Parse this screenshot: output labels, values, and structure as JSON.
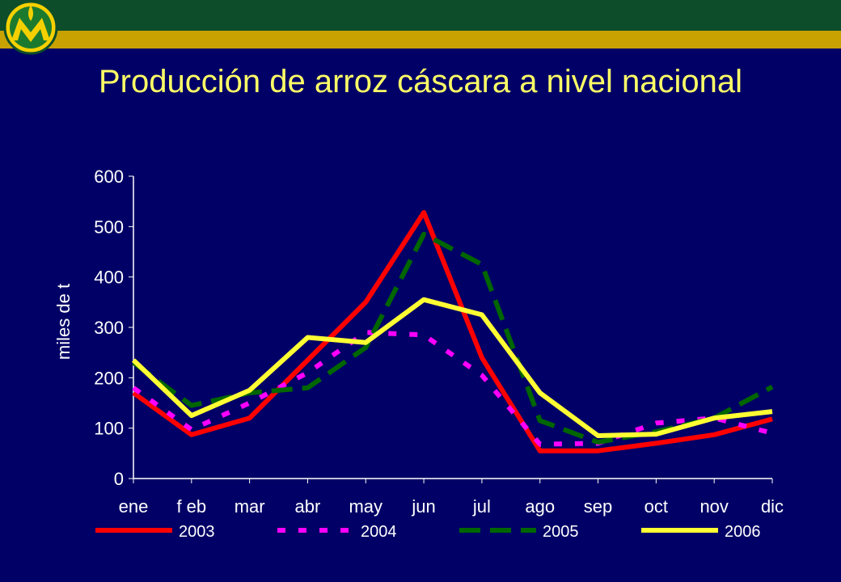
{
  "title": "Producción de arroz cáscara a nivel nacional",
  "chart_data": {
    "type": "line",
    "title": "Producción de arroz cáscara a nivel nacional",
    "ylabel": "miles de t",
    "xlabel": "",
    "ylim": [
      0,
      600
    ],
    "yticks": [
      0,
      100,
      200,
      300,
      400,
      500,
      600
    ],
    "grid": false,
    "legend_position": "bottom",
    "categories": [
      "ene",
      "f eb",
      "mar",
      "abr",
      "may",
      "jun",
      "jul",
      "ago",
      "sep",
      "oct",
      "nov",
      "dic"
    ],
    "series": [
      {
        "name": "2003",
        "color": "#ff0000",
        "dash": "solid",
        "values": [
          170,
          87,
          120,
          235,
          350,
          528,
          240,
          55,
          55,
          70,
          87,
          118
        ]
      },
      {
        "name": "2004",
        "color": "#ff00ff",
        "dash": "dotted",
        "values": [
          180,
          97,
          150,
          210,
          290,
          285,
          205,
          68,
          70,
          110,
          120,
          90
        ]
      },
      {
        "name": "2005",
        "color": "#006600",
        "dash": "dashed",
        "values": [
          230,
          145,
          170,
          180,
          260,
          485,
          425,
          115,
          72,
          93,
          120,
          182
        ]
      },
      {
        "name": "2006",
        "color": "#ffff33",
        "dash": "solid",
        "values": [
          235,
          125,
          175,
          280,
          270,
          355,
          325,
          170,
          85,
          88,
          120,
          133
        ]
      }
    ]
  }
}
